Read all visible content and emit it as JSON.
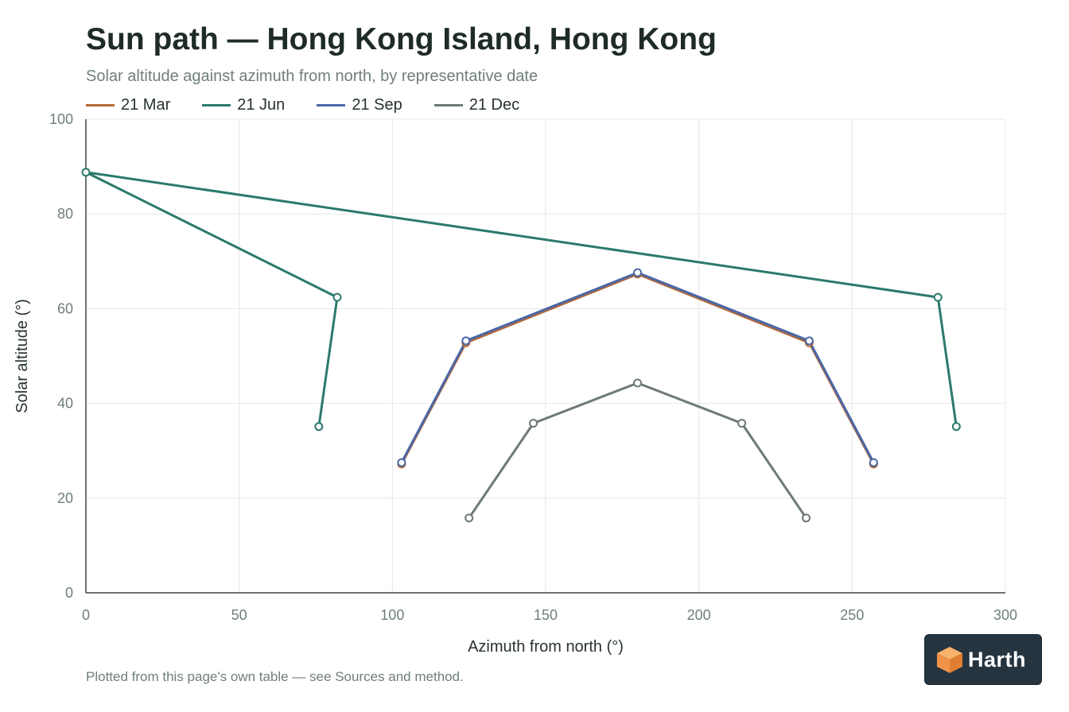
{
  "header": {
    "title": "Sun path — Hong Kong Island, Hong Kong",
    "subtitle": "Solar altitude against azimuth from north, by representative date"
  },
  "footnote": "Plotted from this page's own table — see Sources and method.",
  "logo": {
    "text": "Harth",
    "icon": "cube-logo-icon"
  },
  "chart_data": {
    "type": "line",
    "title": "Sun path — Hong Kong Island, Hong Kong",
    "subtitle": "Solar altitude against azimuth from north, by representative date",
    "xlabel": "Azimuth from north (°)",
    "ylabel": "Solar altitude (°)",
    "xlim": [
      0,
      300
    ],
    "ylim": [
      0,
      100
    ],
    "xticks": [
      0,
      50,
      100,
      150,
      200,
      250,
      300
    ],
    "yticks": [
      0,
      20,
      40,
      60,
      80,
      100
    ],
    "grid": true,
    "legend": "top-left",
    "series": [
      {
        "name": "21 Mar",
        "color": "#b5683a",
        "points": [
          [
            103,
            27.2
          ],
          [
            124,
            52.8
          ],
          [
            180,
            67.3
          ],
          [
            236,
            52.8
          ],
          [
            257,
            27.2
          ]
        ]
      },
      {
        "name": "21 Jun",
        "color": "#2a7a6c",
        "points": [
          [
            76,
            35.1
          ],
          [
            82,
            62.4
          ],
          [
            0,
            88.8
          ],
          [
            278,
            62.4
          ],
          [
            284,
            35.1
          ]
        ]
      },
      {
        "name": "21 Sep",
        "color": "#4a67a6",
        "points": [
          [
            103,
            27.5
          ],
          [
            124,
            53.2
          ],
          [
            180,
            67.6
          ],
          [
            236,
            53.2
          ],
          [
            257,
            27.5
          ]
        ]
      },
      {
        "name": "21 Dec",
        "color": "#6e7a74",
        "points": [
          [
            125,
            15.8
          ],
          [
            146,
            35.8
          ],
          [
            180,
            44.3
          ],
          [
            214,
            35.8
          ],
          [
            235,
            15.8
          ]
        ]
      }
    ]
  }
}
